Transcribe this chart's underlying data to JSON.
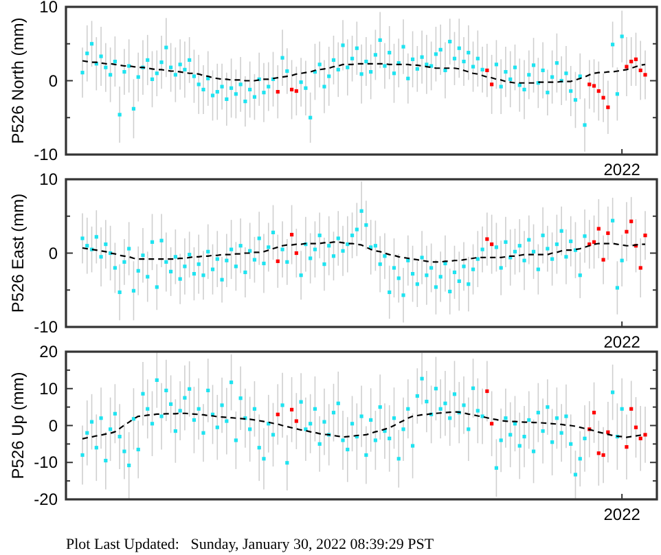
{
  "chart_data": [
    {
      "type": "scatter",
      "ylabel": "P526 North (mm)",
      "ylim": [
        -10,
        10
      ],
      "yticks": [
        -10,
        {
          "value": -5,
          "label": null
        },
        0,
        {
          "value": 5,
          "label": null
        },
        10
      ],
      "marker": "square",
      "categories": [
        null,
        null,
        null,
        null,
        null,
        null,
        null,
        null,
        null,
        null,
        null,
        null,
        null,
        null,
        null,
        null,
        null,
        null,
        null,
        null,
        null,
        null,
        null,
        null,
        null,
        null,
        null,
        null,
        null,
        null,
        null,
        null,
        null,
        null,
        null,
        null,
        null,
        null,
        null,
        null,
        null,
        null,
        null,
        null,
        null,
        null,
        null,
        null,
        null,
        null,
        null,
        null,
        null,
        null,
        null,
        null,
        null,
        null,
        null,
        null,
        null,
        null,
        null,
        null,
        null,
        null,
        null,
        null,
        null,
        null,
        null,
        null,
        null,
        null,
        null,
        null,
        null,
        null,
        null,
        null,
        null,
        null,
        null,
        null,
        null,
        null,
        null,
        null,
        null,
        null,
        null,
        null,
        null,
        null,
        null,
        null,
        null,
        null,
        null,
        null,
        null,
        null,
        null,
        null,
        null,
        null,
        null,
        null,
        null,
        null,
        null,
        null,
        null,
        null,
        null,
        null,
        "2022",
        null,
        null,
        null,
        null,
        null
      ],
      "series": [
        {
          "color": "#1ee3f0",
          "values": [
            1.1,
            3.7,
            5.0,
            2.3,
            3.3,
            1.8,
            0.8,
            2.6,
            -4.6,
            1.2,
            2.0,
            -3.8,
            0.5,
            1.8,
            2.8,
            0.2,
            1.0,
            2.5,
            4.5,
            1.8,
            0.8,
            2.2,
            1.5,
            2.8,
            0.6,
            -0.5,
            -1.2,
            0.3,
            -2.0,
            -1.5,
            -0.8,
            -2.5,
            -1.0,
            -1.8,
            -0.5,
            -2.8,
            -1.2,
            -2.2,
            0.2,
            -1.6,
            -0.8,
            0.2,
            null,
            3.1,
            1.3,
            null,
            null,
            -0.2,
            -1.0,
            -5.0,
            1.2,
            2.2,
            -0.8,
            0.6,
            2.8,
            1.5,
            4.8,
            1.8,
            3.0,
            4.4,
            0.9,
            2.6,
            1.2,
            3.5,
            5.5,
            2.0,
            3.8,
            1.0,
            2.4,
            4.6,
            0.3,
            2.9,
            1.6,
            3.2,
            2.2,
            2.0,
            3.6,
            4.2,
            1.4,
            5.3,
            3.0,
            4.4,
            2.6,
            3.8,
            1.9,
            3.0,
            1.5,
            null,
            null,
            2.2,
            -0.8,
            1.2,
            0.2,
            1.8,
            -0.6,
            -1.2,
            0.8,
            2.1,
            -0.3,
            1.4,
            -1.6,
            0.5,
            2.4,
            0.0,
            1.0,
            -1.4,
            -2.6,
            0.6,
            -6.0,
            null,
            null,
            null,
            null,
            null,
            4.9,
            -1.8,
            6.0,
            null,
            null,
            null,
            null,
            null
          ],
          "errors": [
            3.4,
            3.8,
            3.1,
            3.6,
            4.0,
            3.3,
            3.7,
            3.4,
            3.8,
            3.1,
            3.6,
            4.0,
            3.3,
            3.7,
            3.4,
            3.8,
            3.1,
            3.6,
            4.0,
            3.3,
            3.7,
            3.4,
            3.8,
            3.1,
            3.6,
            4.0,
            3.3,
            3.7,
            3.4,
            3.8,
            3.1,
            3.6,
            4.0,
            3.3,
            3.7,
            3.4,
            3.8,
            3.1,
            3.6,
            4.0,
            3.3,
            3.7,
            null,
            3.8,
            3.1,
            null,
            null,
            3.3,
            3.7,
            3.4,
            3.8,
            3.1,
            3.6,
            4.0,
            3.3,
            3.7,
            3.4,
            3.8,
            3.1,
            3.6,
            4.0,
            3.3,
            3.7,
            3.4,
            3.8,
            3.1,
            3.6,
            4.0,
            3.3,
            3.7,
            3.4,
            3.8,
            3.1,
            3.6,
            4.0,
            3.3,
            3.7,
            3.4,
            3.8,
            3.1,
            3.6,
            4.0,
            3.3,
            3.7,
            3.4,
            3.8,
            3.1,
            null,
            null,
            3.3,
            3.7,
            3.4,
            3.8,
            3.1,
            3.6,
            4.0,
            3.3,
            3.7,
            3.4,
            3.8,
            3.1,
            3.6,
            4.0,
            3.3,
            3.7,
            3.4,
            3.8,
            3.1,
            3.6,
            null,
            null,
            null,
            null,
            null,
            3.1,
            3.6,
            3.5,
            null,
            null,
            null,
            null,
            null
          ]
        },
        {
          "color": "#ff0000",
          "values": [
            null,
            null,
            null,
            null,
            null,
            null,
            null,
            null,
            null,
            null,
            null,
            null,
            null,
            null,
            null,
            null,
            null,
            null,
            null,
            null,
            null,
            null,
            null,
            null,
            null,
            null,
            null,
            null,
            null,
            null,
            null,
            null,
            null,
            null,
            null,
            null,
            null,
            null,
            null,
            null,
            null,
            null,
            -1.5,
            null,
            null,
            -1.2,
            -1.4,
            null,
            null,
            null,
            null,
            null,
            null,
            null,
            null,
            null,
            null,
            null,
            null,
            null,
            null,
            null,
            null,
            null,
            null,
            null,
            null,
            null,
            null,
            null,
            null,
            null,
            null,
            null,
            null,
            null,
            null,
            null,
            null,
            null,
            null,
            null,
            null,
            null,
            null,
            null,
            null,
            1.4,
            -0.5,
            null,
            null,
            null,
            null,
            null,
            null,
            null,
            null,
            null,
            null,
            null,
            null,
            null,
            null,
            null,
            null,
            null,
            null,
            null,
            null,
            -0.5,
            -0.7,
            -1.4,
            -2.3,
            -3.6,
            null,
            null,
            null,
            1.9,
            2.6,
            2.9,
            1.4,
            0.8
          ],
          "errors": [
            null,
            null,
            null,
            null,
            null,
            null,
            null,
            null,
            null,
            null,
            null,
            null,
            null,
            null,
            null,
            null,
            null,
            null,
            null,
            null,
            null,
            null,
            null,
            null,
            null,
            null,
            null,
            null,
            null,
            null,
            null,
            null,
            null,
            null,
            null,
            null,
            null,
            null,
            null,
            null,
            null,
            null,
            3.6,
            null,
            null,
            4.0,
            3.3,
            null,
            null,
            null,
            null,
            null,
            null,
            null,
            null,
            null,
            null,
            null,
            null,
            null,
            null,
            null,
            null,
            null,
            null,
            null,
            null,
            null,
            null,
            null,
            null,
            null,
            null,
            null,
            null,
            null,
            null,
            null,
            null,
            null,
            null,
            null,
            null,
            null,
            null,
            null,
            null,
            3.6,
            4.0,
            null,
            null,
            null,
            null,
            null,
            null,
            null,
            null,
            null,
            null,
            null,
            null,
            null,
            null,
            null,
            null,
            null,
            null,
            null,
            null,
            3.3,
            3.6,
            4.0,
            3.3,
            3.6,
            null,
            null,
            null,
            4.0,
            3.3,
            3.6,
            4.0,
            3.3
          ]
        },
        {
          "type": "line",
          "color": "#000000",
          "line_style": "dashed",
          "marker": "none",
          "values": [
            2.7,
            2.6,
            2.5,
            2.5,
            2.4,
            2.3,
            2.3,
            2.2,
            2.1,
            2.0,
            2.0,
            1.9,
            1.8,
            1.8,
            1.7,
            1.6,
            1.5,
            1.5,
            1.4,
            1.3,
            1.3,
            1.2,
            1.1,
            1.0,
            1.0,
            0.9,
            0.7,
            0.6,
            0.4,
            0.3,
            0.2,
            0.2,
            0.1,
            0.1,
            0.1,
            0.0,
            0.0,
            0.0,
            0.1,
            0.2,
            0.2,
            0.3,
            0.4,
            0.5,
            0.6,
            0.7,
            0.9,
            1.0,
            1.1,
            1.2,
            1.4,
            1.5,
            1.6,
            1.7,
            1.9,
            2.0,
            2.2,
            2.2,
            2.2,
            2.3,
            2.3,
            2.3,
            2.3,
            2.3,
            2.3,
            2.3,
            2.2,
            2.2,
            2.2,
            2.2,
            2.2,
            2.1,
            2.1,
            2.0,
            1.9,
            1.8,
            1.7,
            1.7,
            1.7,
            1.7,
            1.7,
            1.6,
            1.4,
            1.2,
            1.0,
            0.9,
            0.7,
            0.5,
            0.4,
            0.2,
            0.1,
            -0.1,
            -0.2,
            -0.3,
            -0.3,
            -0.3,
            -0.3,
            -0.3,
            -0.2,
            -0.2,
            -0.2,
            -0.2,
            -0.2,
            -0.1,
            -0.1,
            -0.1,
            0.1,
            0.3,
            0.5,
            0.8,
            1.0,
            1.1,
            1.1,
            1.2,
            1.2,
            1.3,
            1.4,
            1.5,
            1.7,
            1.9,
            2.1,
            2.2
          ]
        }
      ]
    },
    {
      "type": "scatter",
      "ylabel": "P526 East (mm)",
      "ylim": [
        -10,
        10
      ],
      "yticks": [
        -10,
        {
          "value": -5,
          "label": null
        },
        0,
        {
          "value": 5,
          "label": null
        },
        10
      ],
      "marker": "square",
      "categories": [
        null,
        null,
        null,
        null,
        null,
        null,
        null,
        null,
        null,
        null,
        null,
        null,
        null,
        null,
        null,
        null,
        null,
        null,
        null,
        null,
        null,
        null,
        null,
        null,
        null,
        null,
        null,
        null,
        null,
        null,
        null,
        null,
        null,
        null,
        null,
        null,
        null,
        null,
        null,
        null,
        null,
        null,
        null,
        null,
        null,
        null,
        null,
        null,
        null,
        null,
        null,
        null,
        null,
        null,
        null,
        null,
        null,
        null,
        null,
        null,
        null,
        null,
        null,
        null,
        null,
        null,
        null,
        null,
        null,
        null,
        null,
        null,
        null,
        null,
        null,
        null,
        null,
        null,
        null,
        null,
        null,
        null,
        null,
        null,
        null,
        null,
        null,
        null,
        null,
        null,
        null,
        null,
        null,
        null,
        null,
        null,
        null,
        null,
        null,
        null,
        null,
        null,
        null,
        null,
        null,
        null,
        null,
        null,
        null,
        null,
        null,
        null,
        null,
        null,
        null,
        null,
        "2022",
        null,
        null,
        null,
        null,
        null
      ],
      "series": [
        {
          "color": "#1ee3f0",
          "values": [
            2.0,
            1.0,
            0.5,
            2.2,
            -0.5,
            1.2,
            0.0,
            -2.0,
            -5.3,
            -1.2,
            0.6,
            -5.1,
            -2.4,
            -0.3,
            -3.2,
            1.5,
            -4.6,
            1.7,
            -1.2,
            -2.5,
            -0.5,
            -3.5,
            -1.8,
            -0.2,
            -2.8,
            -1.5,
            -3.0,
            0.2,
            -2.2,
            -0.8,
            -3.6,
            -1.0,
            0.5,
            -1.8,
            1.0,
            -2.6,
            0.3,
            -0.9,
            2.0,
            -1.4,
            0.8,
            2.8,
            null,
            0.5,
            -1.2,
            null,
            null,
            -3.0,
            1.2,
            -0.7,
            0.5,
            2.4,
            -1.5,
            1.0,
            -0.4,
            2.0,
            0.3,
            1.2,
            2.4,
            3.2,
            5.7,
            3.8,
            0.8,
            1.0,
            -1.5,
            -0.4,
            -5.3,
            -2.0,
            -3.4,
            -5.7,
            -1.0,
            -2.8,
            -4.2,
            -0.6,
            -3.0,
            -2.0,
            -4.6,
            -3.2,
            -1.4,
            -5.2,
            -2.6,
            -3.8,
            -1.8,
            -4.2,
            -2.2,
            -0.8,
            0.5,
            null,
            null,
            0.8,
            -2.0,
            1.5,
            -0.6,
            0.2,
            1.0,
            -1.0,
            1.8,
            0.2,
            -2.2,
            2.4,
            0.6,
            -0.8,
            1.2,
            3.0,
            -0.5,
            1.6,
            0.4,
            -3.0,
            2.3,
            null,
            null,
            null,
            null,
            null,
            4.4,
            -4.7,
            -1.0,
            null,
            null,
            null,
            null,
            null
          ],
          "errors": [
            3.4,
            3.8,
            3.1,
            3.6,
            4.0,
            3.3,
            3.7,
            3.4,
            3.8,
            3.1,
            3.6,
            4.0,
            3.3,
            3.7,
            3.4,
            3.8,
            3.1,
            3.6,
            4.0,
            3.3,
            3.7,
            3.4,
            3.8,
            3.1,
            3.6,
            4.0,
            3.3,
            3.7,
            3.4,
            3.8,
            3.1,
            3.6,
            4.0,
            3.3,
            3.7,
            3.4,
            3.8,
            3.1,
            3.6,
            4.0,
            3.3,
            3.7,
            null,
            3.8,
            3.1,
            null,
            null,
            3.3,
            3.7,
            3.4,
            3.8,
            3.1,
            3.6,
            4.0,
            3.3,
            3.7,
            3.4,
            3.8,
            3.1,
            3.6,
            4.0,
            3.3,
            3.7,
            3.4,
            3.8,
            3.1,
            3.6,
            4.0,
            3.3,
            3.7,
            3.4,
            3.8,
            3.1,
            3.6,
            4.0,
            3.3,
            3.7,
            3.4,
            3.8,
            3.1,
            3.6,
            4.0,
            3.3,
            3.7,
            3.4,
            3.8,
            3.1,
            null,
            null,
            3.3,
            3.7,
            3.4,
            3.8,
            3.1,
            3.6,
            4.0,
            3.3,
            3.7,
            3.4,
            3.8,
            3.1,
            3.6,
            4.0,
            3.3,
            3.7,
            3.4,
            3.8,
            3.1,
            3.6,
            null,
            null,
            null,
            null,
            null,
            3.1,
            3.6,
            3.5,
            null,
            null,
            null,
            null,
            null
          ]
        },
        {
          "color": "#ff0000",
          "values": [
            null,
            null,
            null,
            null,
            null,
            null,
            null,
            null,
            null,
            null,
            null,
            null,
            null,
            null,
            null,
            null,
            null,
            null,
            null,
            null,
            null,
            null,
            null,
            null,
            null,
            null,
            null,
            null,
            null,
            null,
            null,
            null,
            null,
            null,
            null,
            null,
            null,
            null,
            null,
            null,
            null,
            null,
            -1.1,
            null,
            null,
            2.5,
            0.0,
            null,
            null,
            null,
            null,
            null,
            null,
            null,
            null,
            null,
            null,
            null,
            null,
            null,
            null,
            null,
            null,
            null,
            null,
            null,
            null,
            null,
            null,
            null,
            null,
            null,
            null,
            null,
            null,
            null,
            null,
            null,
            null,
            null,
            null,
            null,
            null,
            null,
            null,
            null,
            null,
            1.9,
            1.2,
            null,
            null,
            null,
            null,
            null,
            null,
            null,
            null,
            null,
            null,
            null,
            null,
            null,
            null,
            null,
            null,
            null,
            null,
            null,
            null,
            1.2,
            1.5,
            3.3,
            -0.9,
            2.7,
            null,
            null,
            null,
            2.9,
            4.3,
            1.0,
            -2.0,
            2.4
          ],
          "errors": [
            null,
            null,
            null,
            null,
            null,
            null,
            null,
            null,
            null,
            null,
            null,
            null,
            null,
            null,
            null,
            null,
            null,
            null,
            null,
            null,
            null,
            null,
            null,
            null,
            null,
            null,
            null,
            null,
            null,
            null,
            null,
            null,
            null,
            null,
            null,
            null,
            null,
            null,
            null,
            null,
            null,
            null,
            3.6,
            null,
            null,
            4.0,
            3.3,
            null,
            null,
            null,
            null,
            null,
            null,
            null,
            null,
            null,
            null,
            null,
            null,
            null,
            null,
            null,
            null,
            null,
            null,
            null,
            null,
            null,
            null,
            null,
            null,
            null,
            null,
            null,
            null,
            null,
            null,
            null,
            null,
            null,
            null,
            null,
            null,
            null,
            null,
            null,
            null,
            3.6,
            4.0,
            null,
            null,
            null,
            null,
            null,
            null,
            null,
            null,
            null,
            null,
            null,
            null,
            null,
            null,
            null,
            null,
            null,
            null,
            null,
            null,
            3.3,
            3.6,
            4.0,
            3.3,
            3.6,
            null,
            null,
            null,
            4.0,
            3.3,
            3.6,
            4.0,
            3.3
          ]
        },
        {
          "type": "line",
          "color": "#000000",
          "line_style": "dashed",
          "marker": "none",
          "values": [
            0.7,
            0.6,
            0.5,
            0.4,
            0.3,
            0.2,
            0.0,
            -0.1,
            -0.3,
            -0.4,
            -0.5,
            -0.7,
            -0.8,
            -0.8,
            -0.8,
            -0.8,
            -0.8,
            -0.8,
            -0.8,
            -0.8,
            -0.8,
            -0.7,
            -0.7,
            -0.6,
            -0.5,
            -0.5,
            -0.4,
            -0.4,
            -0.3,
            -0.3,
            -0.2,
            -0.2,
            -0.2,
            -0.1,
            -0.1,
            0.0,
            0.0,
            0.1,
            0.1,
            0.2,
            0.4,
            0.6,
            0.8,
            1.0,
            1.1,
            1.1,
            1.2,
            1.2,
            1.3,
            1.3,
            1.3,
            1.3,
            1.4,
            1.4,
            1.5,
            1.5,
            1.4,
            1.3,
            1.3,
            1.2,
            1.1,
            0.8,
            0.5,
            0.3,
            0.2,
            0.0,
            -0.2,
            -0.3,
            -0.5,
            -0.6,
            -0.7,
            -0.8,
            -0.9,
            -1.0,
            -1.1,
            -1.2,
            -1.2,
            -1.2,
            -1.1,
            -1.1,
            -1.0,
            -1.0,
            -0.9,
            -0.8,
            -0.7,
            -0.6,
            -0.6,
            -0.6,
            -0.6,
            -0.6,
            -0.6,
            -0.5,
            -0.4,
            -0.4,
            -0.3,
            -0.2,
            -0.2,
            -0.2,
            -0.2,
            -0.2,
            -0.2,
            0.0,
            0.1,
            0.3,
            0.4,
            0.4,
            0.5,
            0.6,
            0.8,
            1.0,
            1.2,
            1.3,
            1.3,
            1.3,
            1.3,
            1.2,
            1.1,
            1.0,
            1.0,
            1.1,
            1.2,
            1.2
          ]
        }
      ]
    },
    {
      "type": "scatter",
      "ylabel": "P526 Up (mm)",
      "ylim": [
        -20,
        20
      ],
      "yticks": [
        -20,
        {
          "value": -15,
          "label": null
        },
        -10,
        {
          "value": -5,
          "label": null
        },
        0,
        {
          "value": 5,
          "label": null
        },
        10,
        {
          "value": 15,
          "label": null
        },
        20
      ],
      "marker": "square",
      "annotations": [
        "Plot Last Updated:   Sunday, January 30, 2022 08:39:29 PST"
      ],
      "categories": [
        null,
        null,
        null,
        null,
        null,
        null,
        null,
        null,
        null,
        null,
        null,
        null,
        null,
        null,
        null,
        null,
        null,
        null,
        null,
        null,
        null,
        null,
        null,
        null,
        null,
        null,
        null,
        null,
        null,
        null,
        null,
        null,
        null,
        null,
        null,
        null,
        null,
        null,
        null,
        null,
        null,
        null,
        null,
        null,
        null,
        null,
        null,
        null,
        null,
        null,
        null,
        null,
        null,
        null,
        null,
        null,
        null,
        null,
        null,
        null,
        null,
        null,
        null,
        null,
        null,
        null,
        null,
        null,
        null,
        null,
        null,
        null,
        null,
        null,
        null,
        null,
        null,
        null,
        null,
        null,
        null,
        null,
        null,
        null,
        null,
        null,
        null,
        null,
        null,
        null,
        null,
        null,
        null,
        null,
        null,
        null,
        null,
        null,
        null,
        null,
        null,
        null,
        null,
        null,
        null,
        null,
        null,
        null,
        null,
        null,
        null,
        null,
        null,
        null,
        null,
        null,
        "2022",
        null,
        null,
        null,
        null,
        null
      ],
      "series": [
        {
          "color": "#1ee3f0",
          "values": [
            -8.0,
            -2.0,
            1.0,
            -6.0,
            2.0,
            -9.5,
            -1.0,
            3.2,
            -3.0,
            -7.0,
            -10.8,
            1.8,
            -6.5,
            8.6,
            4.5,
            0.5,
            12.3,
            2.5,
            9.5,
            5.8,
            -1.5,
            4.0,
            7.5,
            9.9,
            1.5,
            4.5,
            -2.0,
            9.5,
            3.0,
            -0.5,
            5.5,
            1.2,
            11.7,
            -4.0,
            7.4,
            2.0,
            -1.0,
            4.5,
            -6.0,
            -9.0,
            0.5,
            -2.5,
            null,
            5.5,
            -10.1,
            null,
            null,
            6.4,
            -1.0,
            0.5,
            4.5,
            -5.0,
            1.0,
            -2.5,
            3.5,
            6.0,
            -4.0,
            -6.5,
            0.5,
            -3.0,
            2.5,
            -8.0,
            1.5,
            -4.0,
            5.0,
            -1.5,
            -3.5,
            2.0,
            -9.0,
            -1.0,
            4.5,
            -5.5,
            8.0,
            12.7,
            6.5,
            3.0,
            10.0,
            4.5,
            6.0,
            2.0,
            8.5,
            3.5,
            5.5,
            -1.0,
            10.1,
            4.0,
            2.5,
            null,
            null,
            -11.5,
            -4.0,
            2.0,
            -2.5,
            0.5,
            -5.5,
            -3.0,
            1.5,
            -7.0,
            3.5,
            -1.5,
            5.0,
            -4.5,
            2.0,
            -2.0,
            2.5,
            -5.0,
            -13.3,
            -9.0,
            -3.5,
            null,
            null,
            null,
            null,
            null,
            9.0,
            -3.0,
            4.5,
            null,
            null,
            null,
            null,
            null
          ],
          "errors": [
            8.0,
            8.8,
            7.5,
            9.0,
            8.3,
            7.8,
            8.6,
            8.0,
            8.8,
            7.5,
            9.0,
            8.3,
            7.8,
            8.6,
            8.0,
            8.8,
            7.5,
            9.0,
            8.3,
            7.8,
            8.6,
            8.0,
            8.8,
            7.5,
            9.0,
            8.3,
            7.8,
            8.6,
            8.0,
            8.8,
            7.5,
            9.0,
            7.6,
            7.8,
            8.6,
            8.0,
            8.8,
            7.5,
            9.0,
            8.3,
            7.8,
            8.6,
            null,
            8.8,
            7.5,
            null,
            null,
            7.8,
            8.6,
            8.0,
            8.8,
            7.5,
            9.0,
            8.3,
            7.8,
            8.6,
            8.0,
            8.8,
            7.5,
            9.0,
            8.3,
            7.8,
            8.6,
            8.0,
            8.8,
            7.5,
            9.0,
            8.3,
            7.8,
            8.6,
            8.0,
            8.8,
            7.5,
            7.0,
            8.3,
            7.8,
            8.6,
            8.0,
            8.8,
            7.5,
            9.0,
            8.3,
            7.8,
            8.6,
            8.0,
            8.8,
            7.5,
            null,
            null,
            7.8,
            8.6,
            8.0,
            8.8,
            7.5,
            9.0,
            8.3,
            7.8,
            8.6,
            8.0,
            8.8,
            7.5,
            9.0,
            8.3,
            7.8,
            8.6,
            8.0,
            6.5,
            7.5,
            9.0,
            null,
            null,
            null,
            null,
            null,
            7.5,
            9.0,
            8.3,
            null,
            null,
            null,
            null,
            null
          ]
        },
        {
          "color": "#ff0000",
          "values": [
            null,
            null,
            null,
            null,
            null,
            null,
            null,
            null,
            null,
            null,
            null,
            null,
            null,
            null,
            null,
            null,
            null,
            null,
            null,
            null,
            null,
            null,
            null,
            null,
            null,
            null,
            null,
            null,
            null,
            null,
            null,
            null,
            null,
            null,
            null,
            null,
            null,
            null,
            null,
            null,
            null,
            null,
            3.0,
            null,
            null,
            4.3,
            1.2,
            null,
            null,
            null,
            null,
            null,
            null,
            null,
            null,
            null,
            null,
            null,
            null,
            null,
            null,
            null,
            null,
            null,
            null,
            null,
            null,
            null,
            null,
            null,
            null,
            null,
            null,
            null,
            null,
            null,
            null,
            null,
            null,
            null,
            null,
            null,
            null,
            null,
            null,
            null,
            null,
            9.3,
            0.5,
            null,
            null,
            null,
            null,
            null,
            null,
            null,
            null,
            null,
            null,
            null,
            null,
            null,
            null,
            null,
            null,
            null,
            null,
            null,
            null,
            -1.0,
            3.5,
            -7.5,
            -8.0,
            -1.8,
            null,
            null,
            null,
            -5.8,
            4.5,
            -0.5,
            -3.5,
            -2.5
          ],
          "errors": [
            null,
            null,
            null,
            null,
            null,
            null,
            null,
            null,
            null,
            null,
            null,
            null,
            null,
            null,
            null,
            null,
            null,
            null,
            null,
            null,
            null,
            null,
            null,
            null,
            null,
            null,
            null,
            null,
            null,
            null,
            null,
            null,
            null,
            null,
            null,
            null,
            null,
            null,
            null,
            null,
            null,
            null,
            8.2,
            null,
            null,
            8.8,
            7.6,
            null,
            null,
            null,
            null,
            null,
            null,
            null,
            null,
            null,
            null,
            null,
            null,
            null,
            null,
            null,
            null,
            null,
            null,
            null,
            null,
            null,
            null,
            null,
            null,
            null,
            null,
            null,
            null,
            null,
            null,
            null,
            null,
            null,
            null,
            null,
            null,
            null,
            null,
            null,
            null,
            8.2,
            8.8,
            null,
            null,
            null,
            null,
            null,
            null,
            null,
            null,
            null,
            null,
            null,
            null,
            null,
            null,
            null,
            null,
            null,
            null,
            null,
            null,
            7.6,
            8.2,
            8.8,
            7.6,
            8.2,
            null,
            null,
            null,
            8.8,
            7.6,
            8.2,
            8.8,
            7.6
          ]
        },
        {
          "type": "line",
          "color": "#000000",
          "line_style": "dashed",
          "marker": "none",
          "values": [
            -3.6,
            -3.3,
            -3.1,
            -2.8,
            -2.6,
            -2.3,
            -2.1,
            -1.7,
            -0.8,
            0.1,
            0.9,
            1.8,
            2.5,
            2.6,
            2.8,
            2.9,
            3.1,
            3.1,
            3.2,
            3.2,
            3.2,
            3.3,
            3.3,
            3.2,
            3.1,
            3.0,
            2.9,
            2.7,
            2.6,
            2.4,
            2.3,
            2.2,
            2.1,
            2.0,
            1.9,
            1.8,
            1.7,
            1.5,
            1.3,
            1.1,
            0.9,
            0.6,
            0.4,
            0.0,
            -0.3,
            -0.6,
            -0.9,
            -1.2,
            -1.4,
            -1.7,
            -1.9,
            -2.2,
            -2.4,
            -2.5,
            -2.7,
            -2.9,
            -3.1,
            -3.0,
            -2.9,
            -2.7,
            -2.6,
            -2.5,
            -2.1,
            -1.7,
            -1.4,
            -1.0,
            -0.6,
            0.0,
            0.7,
            1.3,
            2.0,
            2.5,
            2.7,
            2.9,
            3.0,
            3.2,
            3.3,
            3.4,
            3.5,
            3.6,
            3.7,
            3.6,
            3.4,
            3.1,
            2.9,
            2.6,
            2.4,
            2.1,
            1.8,
            1.6,
            1.3,
            1.2,
            1.1,
            1.1,
            1.0,
            0.9,
            0.9,
            0.8,
            0.8,
            0.7,
            0.6,
            0.5,
            0.4,
            0.3,
            0.1,
            0.0,
            -0.2,
            -0.5,
            -0.8,
            -1.1,
            -1.4,
            -1.8,
            -2.1,
            -2.4,
            -2.7,
            -2.9,
            -3.0,
            -3.2,
            -3.0,
            -2.8,
            -2.6,
            -2.5
          ]
        }
      ]
    }
  ]
}
